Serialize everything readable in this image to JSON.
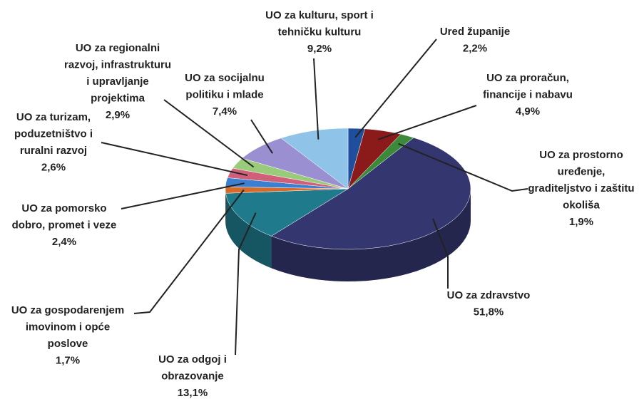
{
  "chart_data": {
    "type": "pie3d",
    "categories": [
      [
        "Ured županije"
      ],
      [
        "UO za proračun,",
        "financije i nabavu"
      ],
      [
        "UO za prostorno",
        "uređenje,",
        "graditeljstvo i zaštitu",
        "okoliša"
      ],
      [
        "UO za zdravstvo"
      ],
      [
        "UO za odgoj i",
        "obrazovanje"
      ],
      [
        "UO za gospodarenjem",
        "imovinom i opće",
        "poslove"
      ],
      [
        "UO za pomorsko",
        "dobro, promet i veze"
      ],
      [
        "UO za turizam,",
        "poduzetništvo i",
        "ruralni razvoj"
      ],
      [
        "UO za regionalni",
        "razvoj, infrastrukturu",
        "i upravljanje",
        "projektima"
      ],
      [
        "UO za socijalnu",
        "politiku i mlade"
      ],
      [
        "UO za kulturu, sport i",
        "tehničku kulturu"
      ]
    ],
    "values": [
      2.2,
      4.9,
      1.9,
      51.8,
      13.1,
      1.7,
      2.4,
      2.6,
      2.9,
      7.4,
      9.2
    ],
    "value_labels": [
      "2,2%",
      "4,9%",
      "1,9%",
      "51,8%",
      "13,1%",
      "1,7%",
      "2,4%",
      "2,6%",
      "2,9%",
      "7,4%",
      "9,2%"
    ],
    "colors": [
      "#1f4e9c",
      "#8b1a1a",
      "#3a8a3a",
      "#34366f",
      "#1f7a8c",
      "#d86a2a",
      "#3a7fd0",
      "#d0607a",
      "#9acb7a",
      "#9a8fd0",
      "#8fc3e8"
    ]
  }
}
